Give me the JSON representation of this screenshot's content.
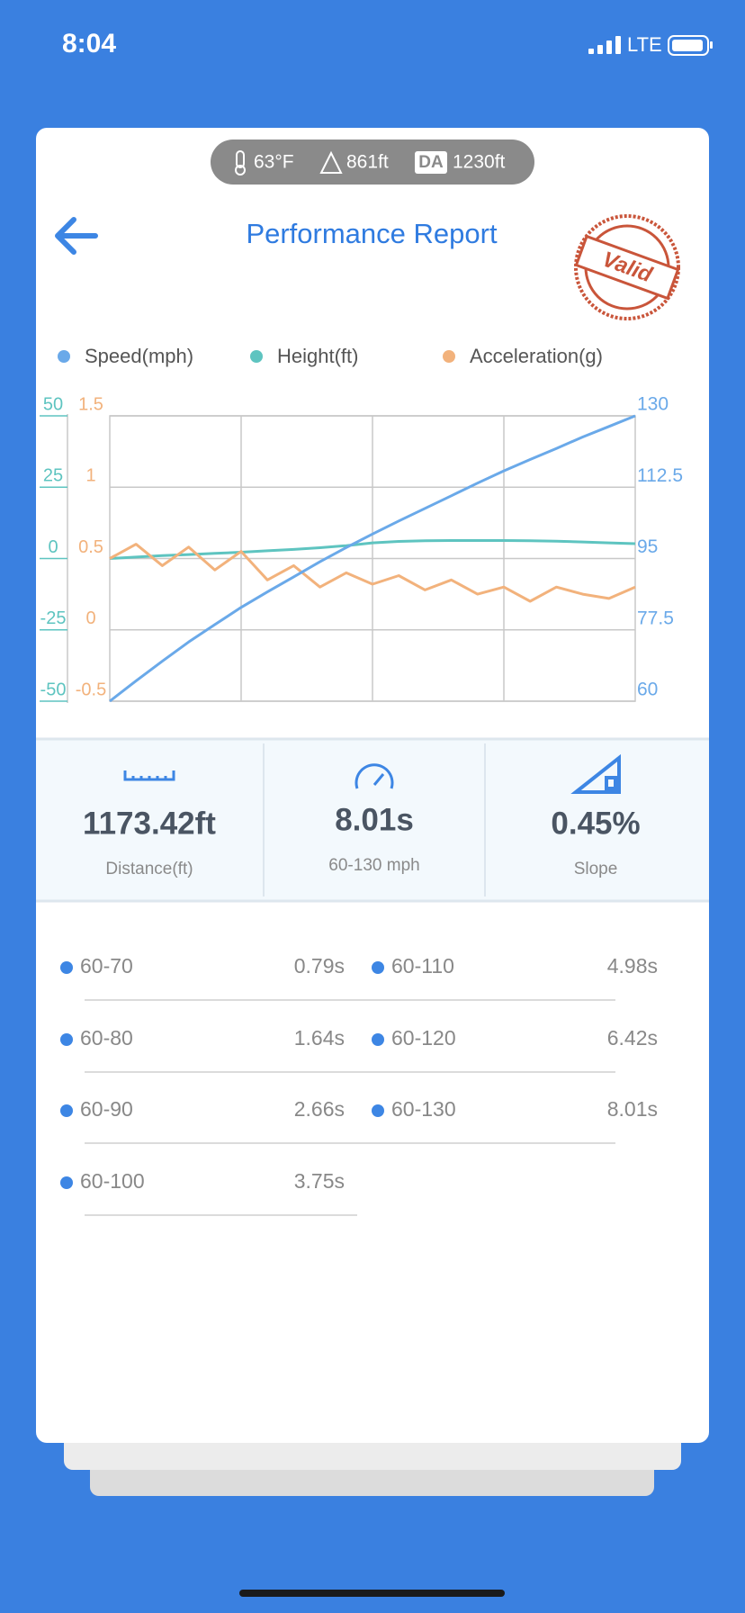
{
  "status_bar": {
    "time": "8:04",
    "network": "LTE"
  },
  "conditions": {
    "temperature": "63°F",
    "altitude": "861ft",
    "da_badge": "DA",
    "density_altitude": "1230ft"
  },
  "header": {
    "title": "Performance Report",
    "stamp": "Valid"
  },
  "chart_data": {
    "type": "line",
    "series": [
      {
        "name": "Speed(mph)",
        "color": "#6aa9e9",
        "axis": "y2",
        "values": [
          60,
          65,
          69.8,
          74.5,
          78.8,
          83,
          86.8,
          90.5,
          94.2,
          97.7,
          101,
          104.2,
          107.3,
          110.4,
          113.5,
          116.5,
          119.3,
          122,
          124.8,
          127.4,
          130
        ]
      },
      {
        "name": "Height(ft)",
        "color": "#5ec4c0",
        "values": [
          0,
          0.5,
          1,
          1.4,
          1.8,
          2.2,
          2.7,
          3.2,
          3.8,
          4.5,
          5.5,
          6,
          6.2,
          6.3,
          6.3,
          6.3,
          6.2,
          6.1,
          5.8,
          5.5,
          5.2
        ]
      },
      {
        "name": "Acceleration(g)",
        "color": "#f2b27c",
        "axis": "y3",
        "values": [
          0.5,
          0.6,
          0.45,
          0.58,
          0.42,
          0.55,
          0.35,
          0.45,
          0.3,
          0.4,
          0.32,
          0.38,
          0.28,
          0.35,
          0.25,
          0.3,
          0.2,
          0.3,
          0.25,
          0.22,
          0.3
        ]
      }
    ],
    "ylim": [
      -50,
      50
    ],
    "yticks": [
      50,
      25,
      0,
      -25,
      -50
    ],
    "y2lim": [
      60,
      130
    ],
    "y2ticks": [
      130,
      112.5,
      95,
      77.5,
      60
    ],
    "y3lim": [
      -0.5,
      1.5
    ],
    "y3ticks": [
      1.5,
      1,
      0.5,
      0,
      -0.5
    ],
    "grid": true
  },
  "stats": [
    {
      "value": "1173.42ft",
      "label": "Distance(ft)"
    },
    {
      "value": "8.01s",
      "label": "60-130 mph"
    },
    {
      "value": "0.45%",
      "label": "Slope"
    }
  ],
  "splits": [
    {
      "range": "60-70",
      "time": "0.79s"
    },
    {
      "range": "60-80",
      "time": "1.64s"
    },
    {
      "range": "60-90",
      "time": "2.66s"
    },
    {
      "range": "60-100",
      "time": "3.75s"
    },
    {
      "range": "60-110",
      "time": "4.98s"
    },
    {
      "range": "60-120",
      "time": "6.42s"
    },
    {
      "range": "60-130",
      "time": "8.01s"
    }
  ]
}
